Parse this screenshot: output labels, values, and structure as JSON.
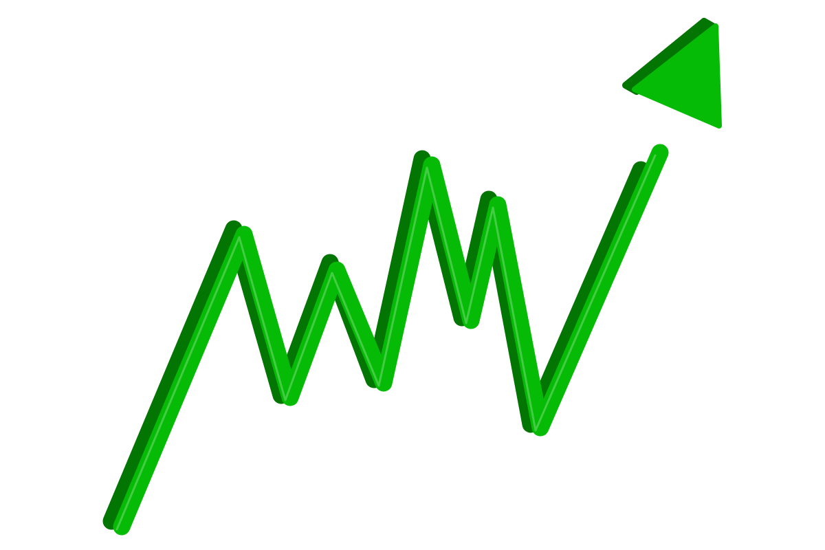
{
  "illustration": {
    "subject": "zigzag-up-trend-arrow",
    "style": "3d-isometric",
    "colors": {
      "front": "#06bb06",
      "side": "#037503",
      "background": "#ffffff"
    }
  }
}
